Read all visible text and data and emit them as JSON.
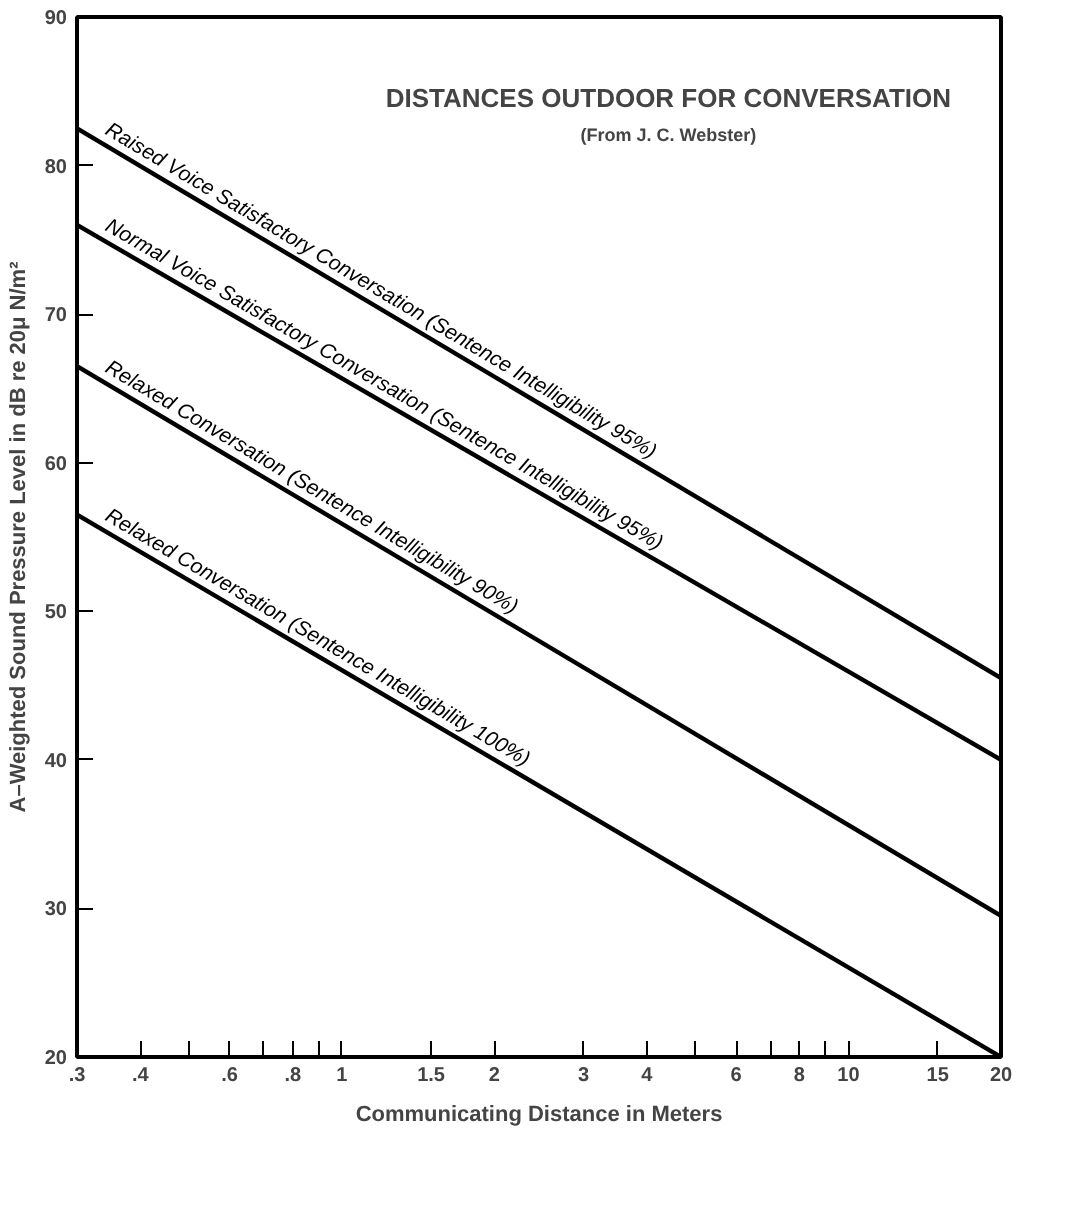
{
  "chart_data": {
    "type": "line",
    "title": "DISTANCES OUTDOOR FOR CONVERSATION",
    "subtitle": "(From J. C. Webster)",
    "xlabel": "Communicating Distance in Meters",
    "ylabel": "A–Weighted Sound Pressure Level in dB re 20μ N/m²",
    "log": "x",
    "x": [
      0.3,
      20
    ],
    "series": [
      {
        "name": "Raised Voice Satisfactory Conversation (Sentence Intelligibility 95%)",
        "color": "#000000",
        "values": [
          82.5,
          45.5
        ]
      },
      {
        "name": "Normal Voice Satisfactory Conversation (Sentence Intelligibility 95%)",
        "color": "#000000",
        "values": [
          76,
          40
        ]
      },
      {
        "name": "Relaxed Conversation (Sentence Intelligibility 90%)",
        "color": "#000000",
        "values": [
          66.5,
          29.5
        ]
      },
      {
        "name": "Relaxed Conversation (Sentence Intelligibility 100%)",
        "color": "#000000",
        "values": [
          56.5,
          20
        ]
      }
    ],
    "xlim": [
      0.3,
      20
    ],
    "ylim": [
      20,
      90
    ],
    "xticks": [
      {
        "value": 0.3,
        "label": ".3"
      },
      {
        "value": 0.4,
        "label": ".4"
      },
      {
        "value": 0.5,
        "label": null
      },
      {
        "value": 0.6,
        "label": ".6"
      },
      {
        "value": 0.7,
        "label": null
      },
      {
        "value": 0.8,
        "label": ".8"
      },
      {
        "value": 0.9,
        "label": null
      },
      1,
      1.5,
      2,
      3,
      4,
      {
        "value": 5,
        "label": null
      },
      6,
      {
        "value": 7,
        "label": null
      },
      8,
      {
        "value": 9,
        "label": null
      },
      10,
      15,
      20
    ],
    "yticks": [
      20,
      30,
      40,
      50,
      60,
      70,
      80,
      90
    ]
  }
}
